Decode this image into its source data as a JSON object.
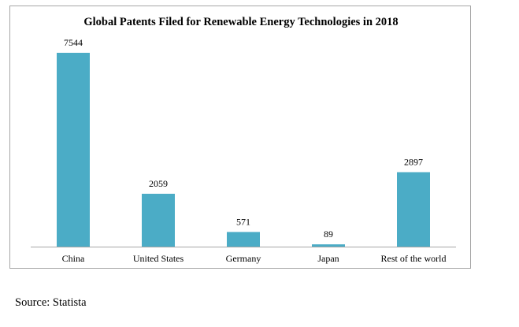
{
  "chart_data": {
    "type": "bar",
    "title": "Global Patents Filed for Renewable Energy Technologies in 2018",
    "categories": [
      "China",
      "United States",
      "Germany",
      "Japan",
      "Rest of the world"
    ],
    "values": [
      7544,
      2059,
      571,
      89,
      2897
    ],
    "data_labels": [
      "7544",
      "2059",
      "571",
      "89",
      "2897"
    ],
    "xlabel": "",
    "ylabel": "",
    "ylim": [
      0,
      8000
    ],
    "grid": false,
    "legend": "none",
    "bar_color": "#4bacc6",
    "axis_color": "#a6a6a6"
  },
  "footer": {
    "source": "Source: Statista"
  }
}
